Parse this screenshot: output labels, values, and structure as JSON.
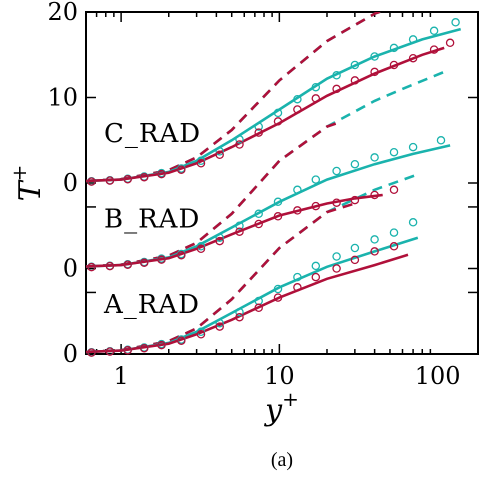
{
  "figure": {
    "caption": "(a)"
  },
  "chart_data": {
    "type": "line",
    "xscale": "log",
    "xlim": [
      0.6,
      180
    ],
    "ylim": [
      0,
      20
    ],
    "xlabel": "y",
    "xlabel_sup": "+",
    "ylabel": "T",
    "ylabel_sup": "+",
    "x_ticks": [
      1,
      10,
      100
    ],
    "x_tick_labels": [
      "1",
      "10",
      "100"
    ],
    "y_tick_labels": [
      {
        "value": 0,
        "label": "0"
      },
      {
        "value": 10,
        "label": "10"
      },
      {
        "value": 20,
        "label": "20"
      },
      {
        "value": 5,
        "label": "0"
      },
      {
        "value": 10,
        "label": ""
      },
      {
        "value": 0,
        "label": ""
      }
    ],
    "y_tick_values": [
      0,
      3.6,
      5,
      8.6,
      10,
      15,
      20
    ],
    "visible_zero_labels": [
      {
        "value": 0,
        "label": "0"
      },
      {
        "value": 5,
        "label": "0"
      },
      {
        "value": 10,
        "label": "0"
      }
    ],
    "visible_other_labels": [
      {
        "value": 15,
        "label": "10"
      },
      {
        "value": 20,
        "label": "20"
      }
    ],
    "colors": {
      "cyan": "#1ab3ad",
      "red": "#b0103a"
    },
    "cases": [
      {
        "label": "A_RAD",
        "offset": 0,
        "cyan_solid": [
          [
            0.6,
            0.12
          ],
          [
            1,
            0.2
          ],
          [
            2,
            0.65
          ],
          [
            3,
            1.3
          ],
          [
            5,
            2.4
          ],
          [
            10,
            3.9
          ],
          [
            20,
            5.1
          ],
          [
            40,
            6.0
          ],
          [
            75,
            6.8
          ]
        ],
        "red_solid": [
          [
            0.6,
            0.12
          ],
          [
            1,
            0.2
          ],
          [
            2,
            0.6
          ],
          [
            3,
            1.15
          ],
          [
            5,
            2.0
          ],
          [
            10,
            3.3
          ],
          [
            20,
            4.4
          ],
          [
            40,
            5.2
          ],
          [
            65,
            5.8
          ]
        ],
        "cyan_dashed": [
          [
            0.6,
            0.12
          ],
          [
            1,
            0.22
          ],
          [
            2,
            0.75
          ],
          [
            3,
            1.5
          ],
          [
            5,
            3.2
          ],
          [
            10,
            6.2
          ],
          [
            20,
            8.3
          ],
          [
            40,
            9.6
          ],
          [
            75,
            10.5
          ]
        ],
        "red_dashed": [
          [
            0.6,
            0.12
          ],
          [
            1,
            0.22
          ],
          [
            2,
            0.75
          ],
          [
            3,
            1.5
          ],
          [
            5,
            3.2
          ],
          [
            10,
            6.2
          ],
          [
            20,
            8.3
          ],
          [
            30,
            8.8
          ]
        ],
        "cyan_circles": [
          [
            0.65,
            0.1
          ],
          [
            0.85,
            0.16
          ],
          [
            1.1,
            0.25
          ],
          [
            1.4,
            0.38
          ],
          [
            1.8,
            0.58
          ],
          [
            2.4,
            0.85
          ],
          [
            3.2,
            1.3
          ],
          [
            4.2,
            1.8
          ],
          [
            5.6,
            2.45
          ],
          [
            7.4,
            3.1
          ],
          [
            9.8,
            3.8
          ],
          [
            13,
            4.5
          ],
          [
            17,
            5.15
          ],
          [
            23,
            5.7
          ],
          [
            30,
            6.2
          ],
          [
            40,
            6.7
          ],
          [
            53,
            7.1
          ],
          [
            70,
            7.7
          ]
        ],
        "red_circles": [
          [
            0.65,
            0.08
          ],
          [
            0.85,
            0.14
          ],
          [
            1.1,
            0.22
          ],
          [
            1.4,
            0.34
          ],
          [
            1.8,
            0.52
          ],
          [
            2.4,
            0.78
          ],
          [
            3.2,
            1.15
          ],
          [
            4.2,
            1.6
          ],
          [
            5.6,
            2.15
          ],
          [
            7.4,
            2.7
          ],
          [
            9.8,
            3.3
          ],
          [
            13,
            3.9
          ],
          [
            17,
            4.5
          ],
          [
            23,
            5.0
          ],
          [
            30,
            5.5
          ],
          [
            40,
            6.0
          ],
          [
            53,
            6.3
          ]
        ]
      },
      {
        "label": "B_RAD",
        "offset": 5,
        "cyan_solid": [
          [
            0.6,
            0.12
          ],
          [
            1,
            0.2
          ],
          [
            2,
            0.65
          ],
          [
            3,
            1.3
          ],
          [
            5,
            2.4
          ],
          [
            10,
            3.9
          ],
          [
            20,
            5.2
          ],
          [
            40,
            6.1
          ],
          [
            70,
            6.7
          ],
          [
            120,
            7.2
          ]
        ],
        "red_solid": [
          [
            0.6,
            0.12
          ],
          [
            1,
            0.2
          ],
          [
            2,
            0.6
          ],
          [
            3,
            1.15
          ],
          [
            5,
            2.0
          ],
          [
            10,
            3.1
          ],
          [
            20,
            3.8
          ],
          [
            30,
            4.1
          ],
          [
            45,
            4.3
          ]
        ],
        "cyan_dashed": [
          [
            0.6,
            0.12
          ],
          [
            1,
            0.22
          ],
          [
            2,
            0.75
          ],
          [
            3,
            1.5
          ],
          [
            5,
            3.2
          ],
          [
            10,
            6.3
          ],
          [
            20,
            8.3
          ],
          [
            40,
            9.8
          ],
          [
            60,
            10.5
          ],
          [
            110,
            11.5
          ]
        ],
        "red_dashed": [
          [
            0.6,
            0.12
          ],
          [
            1,
            0.22
          ],
          [
            2,
            0.75
          ],
          [
            3,
            1.5
          ],
          [
            5,
            3.2
          ],
          [
            10,
            6.3
          ],
          [
            20,
            8.3
          ],
          [
            25,
            8.6
          ]
        ],
        "cyan_circles": [
          [
            0.65,
            0.1
          ],
          [
            0.85,
            0.16
          ],
          [
            1.1,
            0.25
          ],
          [
            1.4,
            0.38
          ],
          [
            1.8,
            0.58
          ],
          [
            2.4,
            0.85
          ],
          [
            3.2,
            1.3
          ],
          [
            4.2,
            1.8
          ],
          [
            5.6,
            2.5
          ],
          [
            7.4,
            3.2
          ],
          [
            9.8,
            3.9
          ],
          [
            13,
            4.6
          ],
          [
            17,
            5.2
          ],
          [
            23,
            5.7
          ],
          [
            30,
            6.1
          ],
          [
            40,
            6.5
          ],
          [
            53,
            6.8
          ],
          [
            70,
            7.1
          ],
          [
            105,
            7.5
          ]
        ],
        "red_circles": [
          [
            0.65,
            0.08
          ],
          [
            0.85,
            0.14
          ],
          [
            1.1,
            0.22
          ],
          [
            1.4,
            0.34
          ],
          [
            1.8,
            0.52
          ],
          [
            2.4,
            0.78
          ],
          [
            3.2,
            1.15
          ],
          [
            4.2,
            1.6
          ],
          [
            5.6,
            2.15
          ],
          [
            7.4,
            2.6
          ],
          [
            9.8,
            3.05
          ],
          [
            13,
            3.4
          ],
          [
            17,
            3.65
          ],
          [
            23,
            3.85
          ],
          [
            30,
            4.0
          ],
          [
            40,
            4.3
          ],
          [
            53,
            4.6
          ]
        ]
      },
      {
        "label": "C_RAD",
        "offset": 10,
        "cyan_solid": [
          [
            0.6,
            0.12
          ],
          [
            1,
            0.2
          ],
          [
            2,
            0.65
          ],
          [
            3,
            1.3
          ],
          [
            5,
            2.5
          ],
          [
            10,
            4.3
          ],
          [
            20,
            6.1
          ],
          [
            40,
            7.4
          ],
          [
            80,
            8.4
          ],
          [
            140,
            9.0
          ]
        ],
        "red_solid": [
          [
            0.6,
            0.12
          ],
          [
            1,
            0.2
          ],
          [
            2,
            0.6
          ],
          [
            3,
            1.15
          ],
          [
            5,
            2.1
          ],
          [
            10,
            3.5
          ],
          [
            20,
            5.1
          ],
          [
            40,
            6.4
          ],
          [
            80,
            7.5
          ],
          [
            110,
            7.9
          ]
        ],
        "cyan_dashed": [
          [
            0.6,
            0.12
          ],
          [
            1,
            0.22
          ],
          [
            2,
            0.75
          ],
          [
            3,
            1.5
          ],
          [
            5,
            3.1
          ],
          [
            10,
            6.0
          ],
          [
            20,
            8.3
          ],
          [
            40,
            9.9
          ],
          [
            80,
            10.9
          ],
          [
            140,
            11.5
          ]
        ],
        "red_dashed": [
          [
            0.6,
            0.12
          ],
          [
            1,
            0.22
          ],
          [
            2,
            0.75
          ],
          [
            3,
            1.5
          ],
          [
            5,
            3.1
          ],
          [
            10,
            6.0
          ],
          [
            20,
            8.3
          ],
          [
            40,
            9.9
          ],
          [
            80,
            10.9
          ],
          [
            110,
            11.2
          ]
        ],
        "cyan_circles": [
          [
            0.65,
            0.1
          ],
          [
            0.85,
            0.16
          ],
          [
            1.1,
            0.25
          ],
          [
            1.4,
            0.38
          ],
          [
            1.8,
            0.58
          ],
          [
            2.4,
            0.85
          ],
          [
            3.2,
            1.3
          ],
          [
            4.2,
            1.85
          ],
          [
            5.6,
            2.55
          ],
          [
            7.4,
            3.3
          ],
          [
            9.8,
            4.1
          ],
          [
            13,
            4.9
          ],
          [
            17,
            5.6
          ],
          [
            23,
            6.3
          ],
          [
            30,
            6.9
          ],
          [
            40,
            7.4
          ],
          [
            53,
            7.9
          ],
          [
            70,
            8.4
          ],
          [
            95,
            8.9
          ],
          [
            130,
            9.4
          ]
        ],
        "red_circles": [
          [
            0.65,
            0.08
          ],
          [
            0.85,
            0.14
          ],
          [
            1.1,
            0.22
          ],
          [
            1.4,
            0.34
          ],
          [
            1.8,
            0.52
          ],
          [
            2.4,
            0.78
          ],
          [
            3.2,
            1.15
          ],
          [
            4.2,
            1.65
          ],
          [
            5.6,
            2.25
          ],
          [
            7.4,
            2.95
          ],
          [
            9.8,
            3.6
          ],
          [
            13,
            4.3
          ],
          [
            17,
            4.95
          ],
          [
            23,
            5.5
          ],
          [
            30,
            6.0
          ],
          [
            40,
            6.5
          ],
          [
            53,
            6.9
          ],
          [
            70,
            7.3
          ],
          [
            95,
            7.8
          ],
          [
            120,
            8.2
          ]
        ]
      }
    ]
  }
}
